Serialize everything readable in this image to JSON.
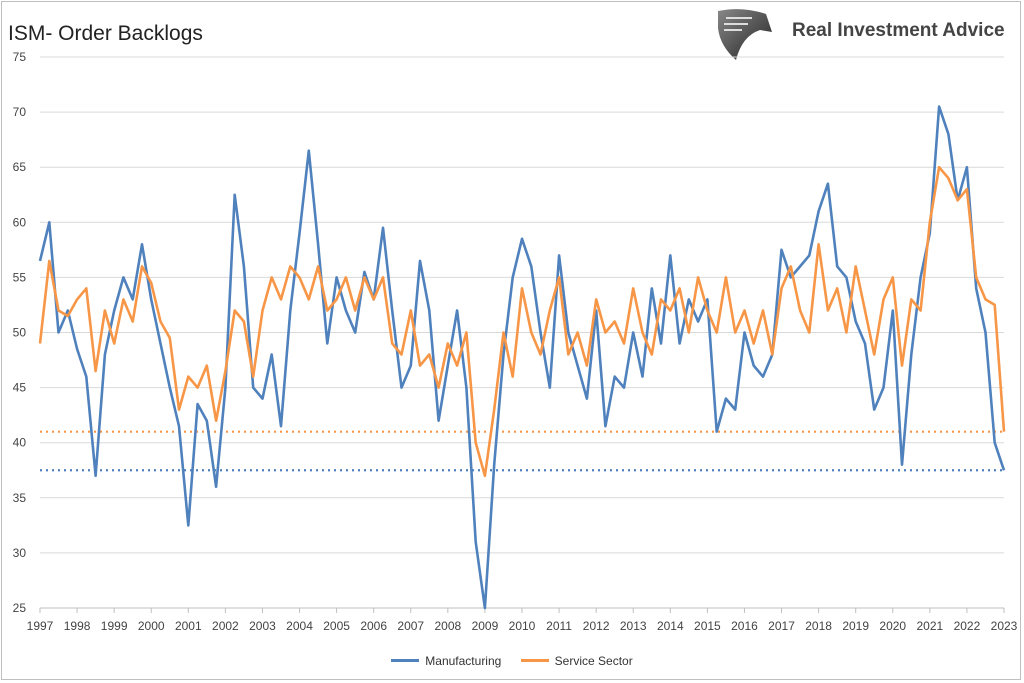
{
  "brand": "Real Investment Advice",
  "chart_data": {
    "type": "line",
    "title": "ISM- Order Backlogs",
    "xlabel": "",
    "ylabel": "",
    "ylim": [
      25,
      75
    ],
    "xlim": [
      1997,
      2023
    ],
    "yticks": [
      25,
      30,
      35,
      40,
      45,
      50,
      55,
      60,
      65,
      70,
      75
    ],
    "xticks": [
      "1997",
      "1998",
      "1999",
      "2000",
      "2001",
      "2002",
      "2003",
      "2004",
      "2005",
      "2006",
      "2007",
      "2008",
      "2009",
      "2010",
      "2011",
      "2012",
      "2013",
      "2014",
      "2015",
      "2016",
      "2017",
      "2018",
      "2019",
      "2020",
      "2021",
      "2022",
      "2023"
    ],
    "grid": true,
    "legend_position": "bottom",
    "x_start": 1997,
    "x_step": 0.25,
    "series": [
      {
        "name": "Manufacturing",
        "color": "#4f81bd",
        "values": [
          56.5,
          60,
          50,
          52,
          48.5,
          46,
          37,
          48,
          52,
          55,
          53,
          58,
          53,
          49,
          45,
          41.5,
          32.5,
          43.5,
          42,
          36,
          45,
          62.5,
          56,
          45,
          44,
          48,
          41.5,
          52,
          59,
          66.5,
          58,
          49,
          55,
          52,
          50,
          55.5,
          53,
          59.5,
          52,
          45,
          47,
          56.5,
          52,
          42,
          47,
          52,
          45,
          31,
          25,
          38,
          48,
          55,
          58.5,
          56,
          50,
          45,
          57,
          50,
          47,
          44,
          52,
          41.5,
          46,
          45,
          50,
          46,
          54,
          49,
          57,
          49,
          53,
          51,
          53,
          41,
          44,
          43,
          50,
          47,
          46,
          48,
          57.5,
          55,
          56,
          57,
          61,
          63.5,
          56,
          55,
          51,
          49,
          43,
          45,
          52,
          38,
          48,
          55,
          59,
          70.5,
          68,
          62,
          65,
          54,
          50,
          40,
          37.5
        ]
      },
      {
        "name": "Service Sector",
        "color": "#f79646",
        "values": [
          49,
          56.5,
          52,
          51.5,
          53,
          54,
          46.5,
          52,
          49,
          53,
          51,
          56,
          54.5,
          51,
          49.5,
          43,
          46,
          45,
          47,
          42,
          46.5,
          52,
          51,
          46,
          52,
          55,
          53,
          56,
          55,
          53,
          56,
          52,
          53,
          55,
          52,
          55,
          53,
          55,
          49,
          48,
          52,
          47,
          48,
          45,
          49,
          47,
          50,
          40,
          37,
          43,
          50,
          46,
          54,
          50,
          48,
          52,
          55,
          48,
          50,
          47,
          53,
          50,
          51,
          49,
          54,
          50,
          48,
          53,
          52,
          54,
          50,
          55,
          52,
          50,
          55,
          50,
          52,
          49,
          52,
          48,
          54,
          56,
          52,
          50,
          58,
          52,
          54,
          50,
          56,
          52,
          48,
          53,
          55,
          47,
          53,
          52,
          60,
          65,
          64,
          62,
          63,
          55,
          53,
          52.5,
          41
        ]
      }
    ],
    "reference_lines": [
      {
        "series": "Manufacturing",
        "value": 37.5,
        "style": "dotted",
        "color": "#4f81bd"
      },
      {
        "series": "Service Sector",
        "value": 41,
        "style": "dotted",
        "color": "#f79646"
      }
    ]
  }
}
